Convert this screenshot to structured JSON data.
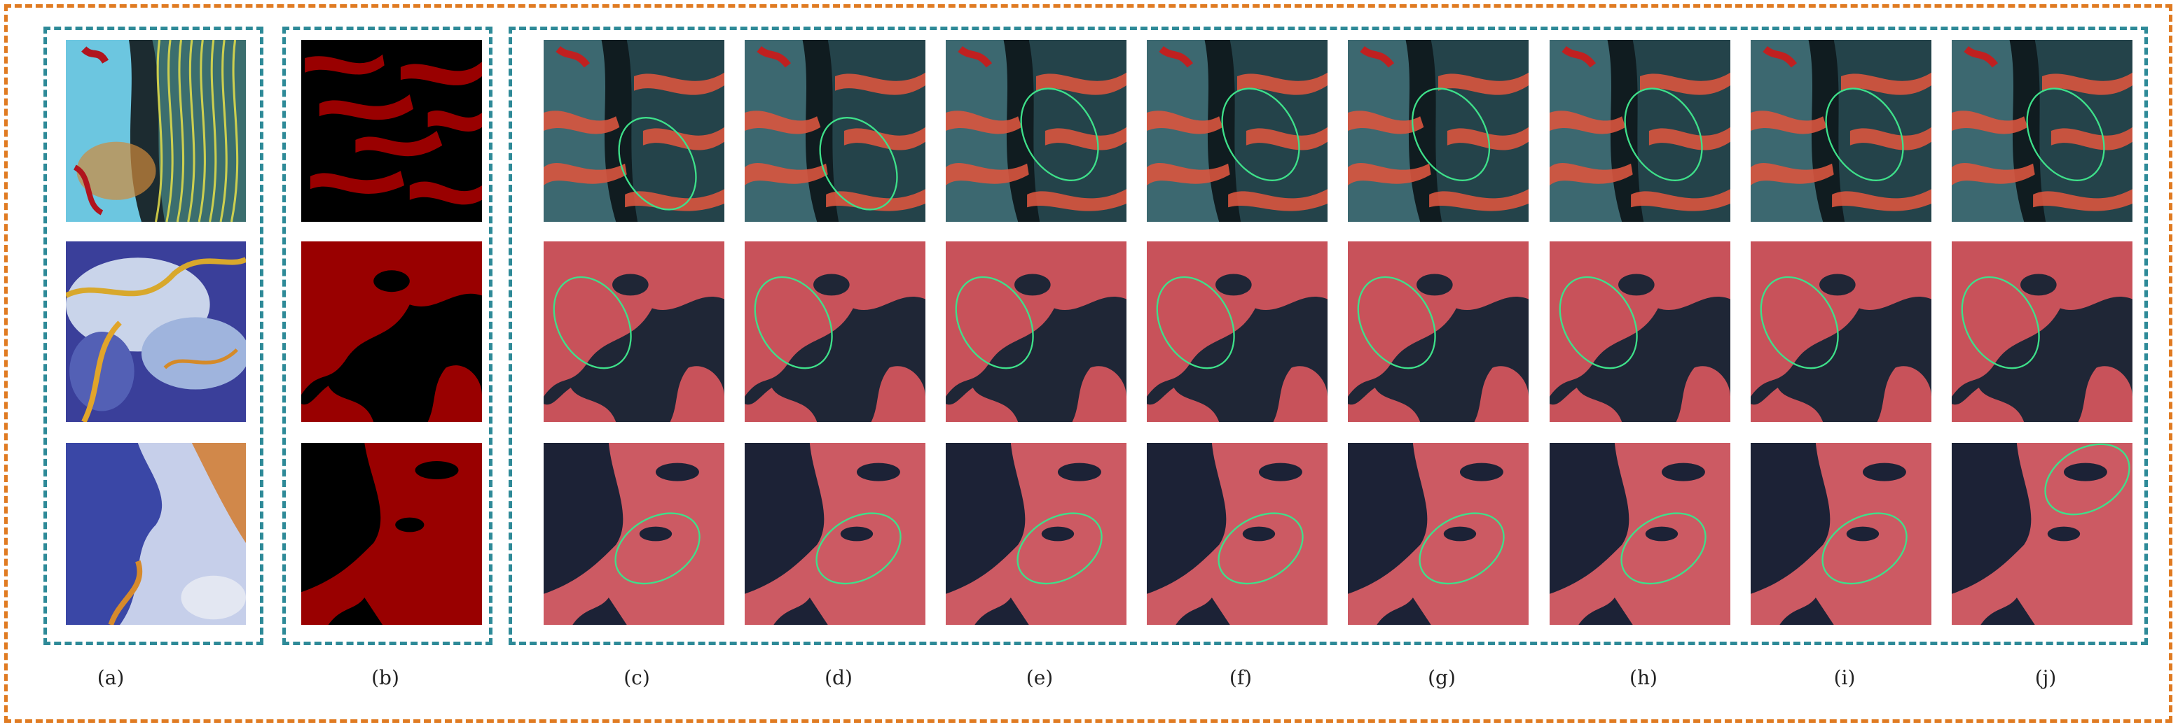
{
  "figure": {
    "labels": [
      "(a)",
      "(b)",
      "(c)",
      "(d)",
      "(e)",
      "(f)",
      "(g)",
      "(h)",
      "(i)",
      "(j)"
    ],
    "colors": {
      "outer_frame": "#e07b22",
      "group_frame": "#2e8a98",
      "change_mask": "#990000",
      "highlight_ellipse": "#3ee08a"
    },
    "rows": 3
  }
}
